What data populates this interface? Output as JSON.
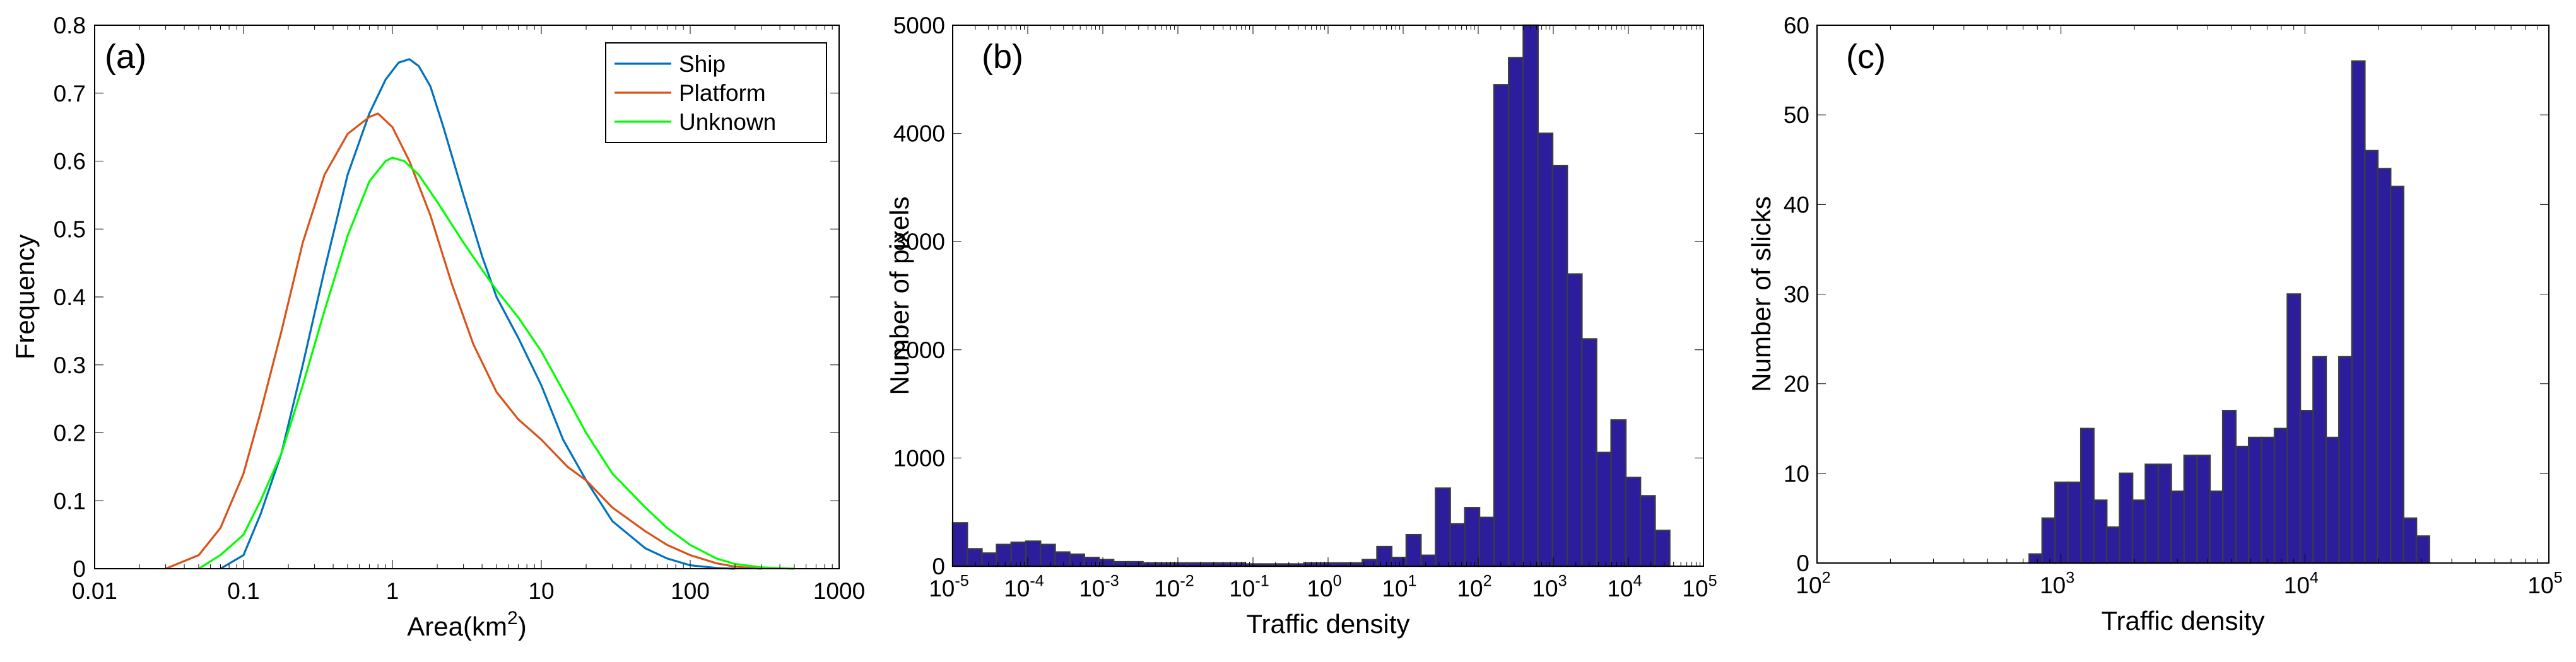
{
  "colors": {
    "ship": "#0072BD",
    "platform": "#D95319",
    "unknown": "#00FF00",
    "bar_fill": "#2B1D9C",
    "bar_edge": "#3A3A48"
  },
  "chart_data": [
    {
      "type": "line",
      "panel_label": "(a)",
      "xlabel": "Area(km",
      "xlabel_sup": "2",
      "xlabel_end": ")",
      "ylabel": "Frequency",
      "xscale": "log",
      "xlim": [
        0.01,
        1000
      ],
      "ylim": [
        0,
        0.8
      ],
      "xticks": [
        "0.01",
        "0.1",
        "1",
        "10",
        "100",
        "1000"
      ],
      "yticks": [
        "0",
        "0.1",
        "0.2",
        "0.3",
        "0.4",
        "0.5",
        "0.6",
        "0.7",
        "0.8"
      ],
      "legend_position": "top-right",
      "series": [
        {
          "name": "Ship",
          "x": [
            0.07,
            0.1,
            0.13,
            0.18,
            0.25,
            0.35,
            0.5,
            0.7,
            0.9,
            1.1,
            1.3,
            1.5,
            1.8,
            2.2,
            3,
            4,
            5,
            7,
            10,
            14,
            20,
            30,
            50,
            70,
            100,
            150,
            200
          ],
          "y": [
            0,
            0.02,
            0.08,
            0.17,
            0.3,
            0.44,
            0.58,
            0.67,
            0.72,
            0.745,
            0.75,
            0.74,
            0.71,
            0.65,
            0.55,
            0.46,
            0.4,
            0.34,
            0.27,
            0.19,
            0.13,
            0.07,
            0.03,
            0.015,
            0.005,
            0.001,
            0
          ]
        },
        {
          "name": "Platform",
          "x": [
            0.03,
            0.05,
            0.07,
            0.1,
            0.13,
            0.18,
            0.25,
            0.35,
            0.5,
            0.7,
            0.8,
            1.0,
            1.3,
            1.8,
            2.5,
            3.5,
            5,
            7,
            10,
            15,
            20,
            30,
            50,
            70,
            100,
            150,
            200,
            300
          ],
          "y": [
            0,
            0.02,
            0.06,
            0.14,
            0.23,
            0.35,
            0.48,
            0.58,
            0.64,
            0.665,
            0.67,
            0.65,
            0.6,
            0.52,
            0.42,
            0.33,
            0.26,
            0.22,
            0.19,
            0.15,
            0.13,
            0.09,
            0.055,
            0.035,
            0.02,
            0.008,
            0.003,
            0
          ]
        },
        {
          "name": "Unknown",
          "x": [
            0.05,
            0.07,
            0.1,
            0.13,
            0.18,
            0.25,
            0.35,
            0.5,
            0.7,
            0.9,
            1.0,
            1.2,
            1.5,
            2,
            3,
            4,
            5,
            7,
            10,
            15,
            20,
            30,
            50,
            70,
            100,
            150,
            200,
            300,
            500
          ],
          "y": [
            0,
            0.02,
            0.05,
            0.1,
            0.17,
            0.27,
            0.38,
            0.49,
            0.57,
            0.6,
            0.605,
            0.6,
            0.58,
            0.54,
            0.48,
            0.44,
            0.41,
            0.37,
            0.32,
            0.25,
            0.2,
            0.14,
            0.09,
            0.06,
            0.035,
            0.015,
            0.007,
            0.002,
            0
          ]
        }
      ]
    },
    {
      "type": "bar",
      "panel_label": "(b)",
      "xlabel": "Traffic density",
      "ylabel": "Number of pixels",
      "xscale": "log",
      "xlim": [
        1e-05,
        100000
      ],
      "ylim": [
        0,
        5000
      ],
      "xtick_exponents": [
        "-5",
        "-4",
        "-3",
        "-2",
        "-1",
        "0",
        "1",
        "2",
        "3",
        "4",
        "5"
      ],
      "yticks": [
        "0",
        "1000",
        "2000",
        "3000",
        "4000",
        "5000"
      ],
      "log_min": -5,
      "log_max": 4.55,
      "values": [
        400,
        160,
        120,
        200,
        220,
        230,
        200,
        130,
        110,
        80,
        60,
        40,
        40,
        30,
        30,
        30,
        30,
        30,
        30,
        30,
        20,
        20,
        20,
        20,
        30,
        30,
        30,
        30,
        60,
        180,
        80,
        290,
        100,
        720,
        390,
        540,
        450,
        4450,
        4700,
        5100,
        4000,
        3700,
        2700,
        2100,
        1050,
        1350,
        820,
        650,
        330
      ]
    },
    {
      "type": "bar",
      "panel_label": "(c)",
      "xlabel": "Traffic density",
      "ylabel": "Number of slicks",
      "xscale": "log",
      "xlim": [
        100,
        100000
      ],
      "ylim": [
        0,
        60
      ],
      "xtick_exponents": [
        "2",
        "3",
        "4",
        "5"
      ],
      "yticks": [
        "0",
        "10",
        "20",
        "30",
        "40",
        "50",
        "60"
      ],
      "log_min": 2.87,
      "log_max": 4.51,
      "values": [
        1,
        5,
        9,
        9,
        15,
        7,
        4,
        10,
        7,
        11,
        11,
        8,
        12,
        12,
        8,
        17,
        13,
        14,
        14,
        15,
        30,
        17,
        23,
        14,
        23,
        56,
        46,
        44,
        42,
        5,
        3
      ]
    }
  ]
}
